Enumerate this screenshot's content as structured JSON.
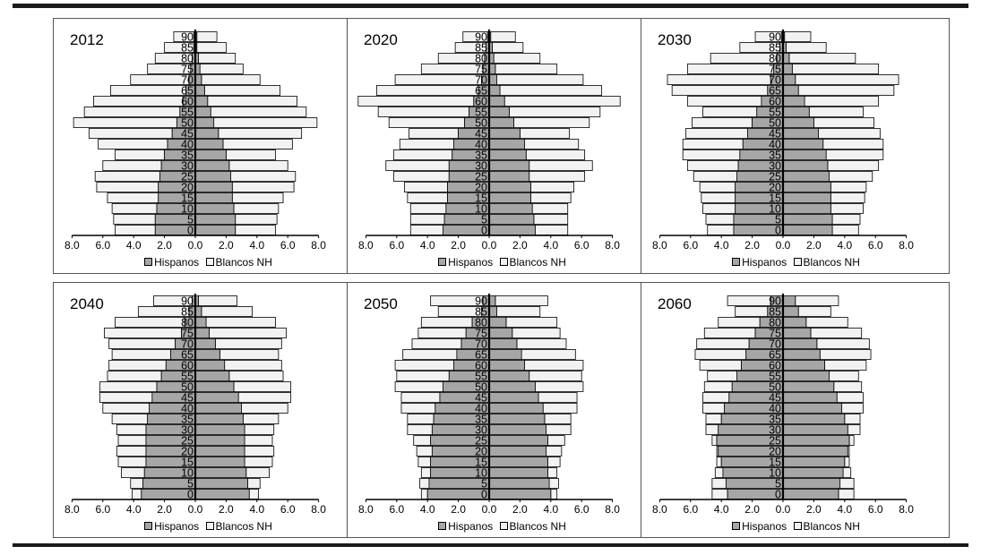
{
  "chart_data": [
    {
      "type": "bar",
      "title": "2012",
      "categories": [
        "0",
        "5",
        "10",
        "15",
        "20",
        "25",
        "30",
        "35",
        "40",
        "45",
        "50",
        "55",
        "60",
        "65",
        "70",
        "75",
        "80",
        "85",
        "90"
      ],
      "series": [
        {
          "name": "Hispanos",
          "values": [
            2.6,
            2.6,
            2.5,
            2.4,
            2.4,
            2.3,
            2.2,
            2.0,
            1.8,
            1.5,
            1.2,
            1.0,
            0.8,
            0.6,
            0.4,
            0.3,
            0.2,
            0.1,
            0.1
          ]
        },
        {
          "name": "Blancos NH",
          "values": [
            2.6,
            2.7,
            2.9,
            3.3,
            4.0,
            4.2,
            3.8,
            3.2,
            4.5,
            5.4,
            6.7,
            6.2,
            5.8,
            4.9,
            3.8,
            2.8,
            2.4,
            1.9,
            1.3
          ]
        }
      ],
      "xlim": [
        -8,
        8
      ],
      "xticks": [
        "8.0",
        "6.0",
        "4.0",
        "2.0",
        "0.0",
        "2.0",
        "4.0",
        "6.0",
        "8.0"
      ]
    },
    {
      "type": "bar",
      "title": "2020",
      "categories": [
        "0",
        "5",
        "10",
        "15",
        "20",
        "25",
        "30",
        "35",
        "40",
        "45",
        "50",
        "55",
        "60",
        "65",
        "70",
        "75",
        "80",
        "85",
        "90"
      ],
      "series": [
        {
          "name": "Hispanos",
          "values": [
            3.0,
            2.9,
            2.8,
            2.7,
            2.7,
            2.6,
            2.6,
            2.4,
            2.3,
            2.0,
            1.6,
            1.3,
            1.0,
            0.7,
            0.5,
            0.4,
            0.3,
            0.2,
            0.1
          ]
        },
        {
          "name": "Blancos NH",
          "values": [
            2.1,
            2.2,
            2.3,
            2.6,
            2.8,
            3.6,
            4.1,
            3.8,
            3.5,
            3.2,
            4.9,
            5.9,
            7.5,
            6.6,
            5.6,
            4.0,
            3.0,
            2.0,
            1.6
          ]
        }
      ],
      "xlim": [
        -8,
        8
      ],
      "xticks": [
        "8.0",
        "6.0",
        "4.0",
        "2.0",
        "0.0",
        "2.0",
        "4.0",
        "6.0",
        "8.0"
      ]
    },
    {
      "type": "bar",
      "title": "2030",
      "categories": [
        "0",
        "5",
        "10",
        "15",
        "20",
        "25",
        "30",
        "35",
        "40",
        "45",
        "50",
        "55",
        "60",
        "65",
        "70",
        "75",
        "80",
        "85",
        "90"
      ],
      "series": [
        {
          "name": "Hispanos",
          "values": [
            3.2,
            3.2,
            3.1,
            3.1,
            3.1,
            3.0,
            2.9,
            2.8,
            2.6,
            2.3,
            2.0,
            1.7,
            1.4,
            1.0,
            0.8,
            0.6,
            0.4,
            0.2,
            0.1
          ]
        },
        {
          "name": "Blancos NH",
          "values": [
            1.7,
            1.8,
            2.1,
            2.2,
            2.3,
            2.8,
            3.3,
            3.7,
            3.9,
            4.0,
            3.9,
            3.5,
            4.8,
            6.2,
            6.7,
            5.6,
            4.3,
            2.6,
            1.7
          ]
        }
      ],
      "xlim": [
        -8,
        8
      ],
      "xticks": [
        "8.0",
        "6.0",
        "4.0",
        "2.0",
        "0.0",
        "2.0",
        "4.0",
        "6.0",
        "8.0"
      ]
    },
    {
      "type": "bar",
      "title": "2040",
      "categories": [
        "0",
        "5",
        "10",
        "15",
        "20",
        "25",
        "30",
        "35",
        "40",
        "45",
        "50",
        "55",
        "60",
        "65",
        "70",
        "75",
        "80",
        "85",
        "90"
      ],
      "series": [
        {
          "name": "Hispanos",
          "values": [
            3.5,
            3.4,
            3.3,
            3.2,
            3.2,
            3.2,
            3.2,
            3.1,
            3.0,
            2.8,
            2.5,
            2.2,
            1.9,
            1.6,
            1.3,
            0.9,
            0.7,
            0.4,
            0.2
          ]
        },
        {
          "name": "Blancos NH",
          "values": [
            0.6,
            0.8,
            1.5,
            1.8,
            1.9,
            1.8,
            1.9,
            2.3,
            3.0,
            3.4,
            3.7,
            3.5,
            3.7,
            3.8,
            4.3,
            5.0,
            4.5,
            3.3,
            2.5
          ]
        }
      ],
      "xlim": [
        -8,
        8
      ],
      "xticks": [
        "8.0",
        "6.0",
        "4.0",
        "2.0",
        "0.0",
        "2.0",
        "4.0",
        "6.0",
        "8.0"
      ]
    },
    {
      "type": "bar",
      "title": "2050",
      "categories": [
        "0",
        "5",
        "10",
        "15",
        "20",
        "25",
        "30",
        "35",
        "40",
        "45",
        "50",
        "55",
        "60",
        "65",
        "70",
        "75",
        "80",
        "85",
        "90"
      ],
      "series": [
        {
          "name": "Hispanos",
          "values": [
            4.0,
            3.9,
            3.8,
            3.8,
            3.7,
            3.8,
            3.7,
            3.6,
            3.5,
            3.2,
            3.0,
            2.6,
            2.3,
            2.1,
            1.8,
            1.5,
            1.1,
            0.5,
            0.4
          ]
        },
        {
          "name": "Blancos NH",
          "values": [
            0.4,
            0.6,
            0.6,
            0.8,
            1.0,
            1.1,
            1.6,
            1.7,
            2.2,
            2.5,
            3.1,
            3.4,
            3.8,
            3.5,
            3.2,
            3.1,
            3.3,
            2.8,
            3.4
          ]
        }
      ],
      "xlim": [
        -8,
        8
      ],
      "xticks": [
        "8.0",
        "6.0",
        "4.0",
        "2.0",
        "0.0",
        "2.0",
        "4.0",
        "6.0",
        "8.0"
      ]
    },
    {
      "type": "bar",
      "title": "2060",
      "categories": [
        "0",
        "5",
        "10",
        "15",
        "20",
        "25",
        "30",
        "35",
        "40",
        "45",
        "50",
        "55",
        "60",
        "65",
        "70",
        "75",
        "80",
        "85",
        "90"
      ],
      "series": [
        {
          "name": "Hispanos",
          "values": [
            3.6,
            3.7,
            3.9,
            4.0,
            4.2,
            4.3,
            4.2,
            4.0,
            3.8,
            3.5,
            3.3,
            3.0,
            2.7,
            2.4,
            2.2,
            1.8,
            1.5,
            1.0,
            0.8
          ]
        },
        {
          "name": "Blancos NH",
          "values": [
            1.0,
            0.9,
            0.5,
            0.3,
            0.1,
            0.3,
            0.8,
            1.0,
            1.4,
            1.7,
            1.8,
            1.9,
            2.7,
            3.3,
            3.4,
            3.3,
            2.7,
            2.1,
            2.8
          ]
        }
      ],
      "xlim": [
        -8,
        8
      ],
      "xticks": [
        "8.0",
        "6.0",
        "4.0",
        "2.0",
        "0.0",
        "2.0",
        "4.0",
        "6.0",
        "8.0"
      ]
    }
  ],
  "colors": {
    "hispanos": "#a6a6a6",
    "blancos": "#f2f2f2",
    "outline": "#000000"
  },
  "legend": {
    "hispanos_label": "Hispanos",
    "blancos_label": "Blancos NH"
  }
}
